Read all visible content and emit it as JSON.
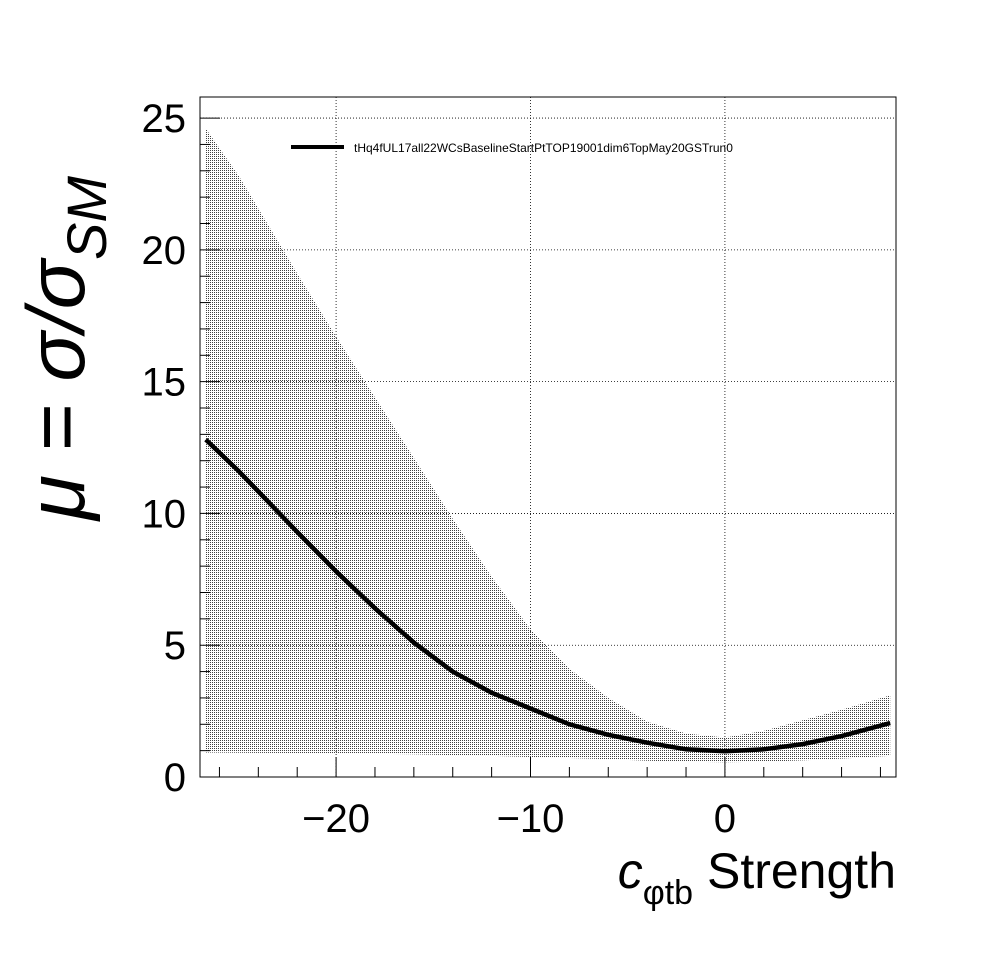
{
  "chart_data": {
    "type": "line",
    "xlabel_main": "c",
    "xlabel_sub": "φtb",
    "xlabel_rest": " Strength",
    "ylabel_main": "μ = σ/σ",
    "ylabel_sub": "SM",
    "xlim": [
      -27,
      8.8
    ],
    "ylim": [
      0,
      25.8
    ],
    "x_ticks": [
      -20,
      -10,
      0
    ],
    "x_tick_labels": [
      "−20",
      "−10",
      "0"
    ],
    "y_ticks": [
      0,
      5,
      10,
      15,
      20,
      25
    ],
    "y_tick_labels": [
      "0",
      "5",
      "10",
      "15",
      "20",
      "25"
    ],
    "grid": true,
    "legend_position": "top-left",
    "series": [
      {
        "name": "tHq4fUL17all22WCsBaselineStartPtTOP19001dim6TopMay20GSTrun0",
        "color": "#000000",
        "x": [
          -26.7,
          -25,
          -22,
          -20,
          -18,
          -16,
          -14,
          -12,
          -10,
          -8,
          -6,
          -4,
          -2,
          0,
          2,
          4,
          6,
          8.5
        ],
        "y": [
          12.8,
          11.6,
          9.3,
          7.8,
          6.4,
          5.1,
          4.0,
          3.2,
          2.6,
          2.0,
          1.6,
          1.3,
          1.05,
          0.98,
          1.05,
          1.25,
          1.55,
          2.05
        ],
        "band_upper": [
          24.6,
          22.8,
          19.1,
          16.7,
          14.4,
          12.1,
          9.8,
          7.6,
          5.6,
          4.1,
          3.0,
          2.1,
          1.65,
          1.5,
          1.75,
          2.15,
          2.55,
          3.1
        ],
        "band_lower": [
          0.93,
          0.92,
          0.91,
          0.9,
          0.88,
          0.86,
          0.83,
          0.8,
          0.76,
          0.72,
          0.67,
          0.62,
          0.58,
          0.56,
          0.58,
          0.63,
          0.7,
          0.8
        ]
      }
    ]
  }
}
